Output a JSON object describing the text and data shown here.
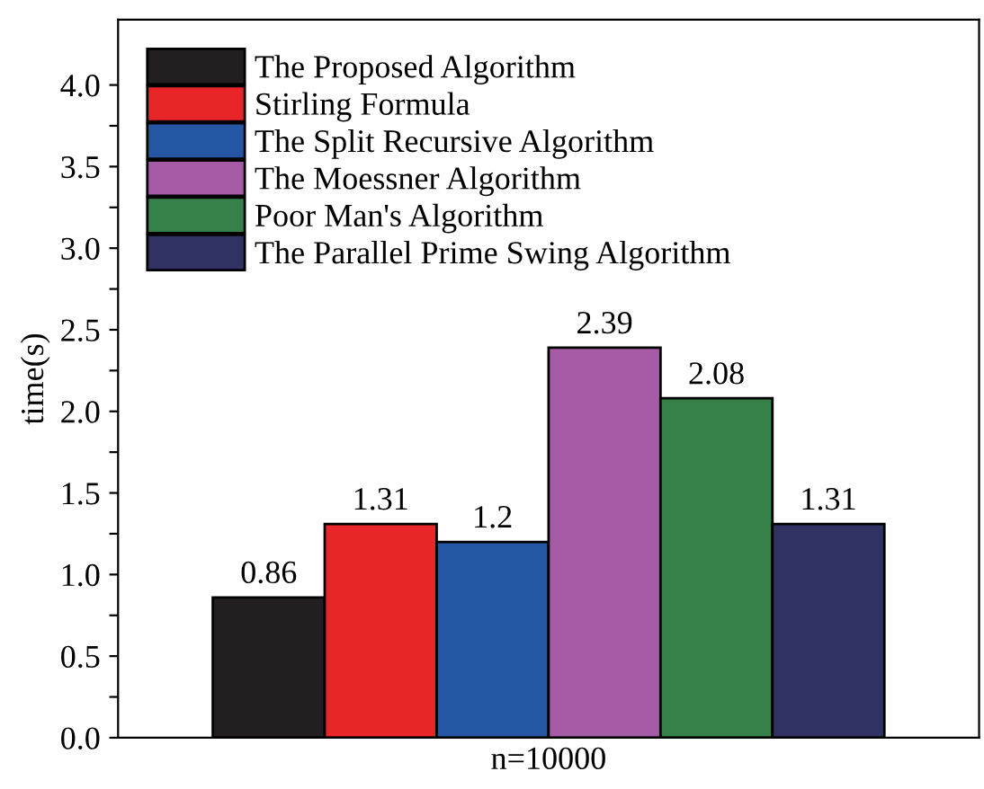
{
  "chart_data": {
    "type": "bar",
    "categories": [
      "n=10000"
    ],
    "ylabel": "time(s)",
    "series": [
      {
        "name": "The Proposed Algorithm",
        "color": "#231f20",
        "values": [
          0.86
        ]
      },
      {
        "name": "Stirling Formula",
        "color": "#e8262a",
        "values": [
          1.31
        ]
      },
      {
        "name": "The Split Recursive Algorithm",
        "color": "#2456a4",
        "values": [
          1.2
        ]
      },
      {
        "name": "The Moessner Algorithm",
        "color": "#a65ba6",
        "values": [
          2.39
        ]
      },
      {
        "name": "Poor Man's Algorithm",
        "color": "#36804a",
        "values": [
          2.08
        ]
      },
      {
        "name": "The Parallel Prime Swing Algorithm",
        "color": "#2f3262",
        "values": [
          1.31
        ]
      }
    ],
    "ylim": [
      0,
      4.4
    ],
    "yticks": [
      {
        "value": 0,
        "label": "0.0"
      },
      {
        "value": 0.25,
        "label": null
      },
      {
        "value": 0.5,
        "label": "0.5"
      },
      {
        "value": 0.75,
        "label": null
      },
      {
        "value": 1,
        "label": "1.0"
      },
      {
        "value": 1.25,
        "label": null
      },
      {
        "value": 1.5,
        "label": "1.5"
      },
      {
        "value": 1.75,
        "label": null
      },
      {
        "value": 2,
        "label": "2.0"
      },
      {
        "value": 2.25,
        "label": null
      },
      {
        "value": 2.5,
        "label": "2.5"
      },
      {
        "value": 2.75,
        "label": null
      },
      {
        "value": 3,
        "label": "3.0"
      },
      {
        "value": 3.25,
        "label": null
      },
      {
        "value": 3.5,
        "label": "3.5"
      },
      {
        "value": 3.75,
        "label": null
      },
      {
        "value": 4,
        "label": "4.0"
      }
    ],
    "data_labels": true,
    "legend": "top left",
    "grid": false
  }
}
